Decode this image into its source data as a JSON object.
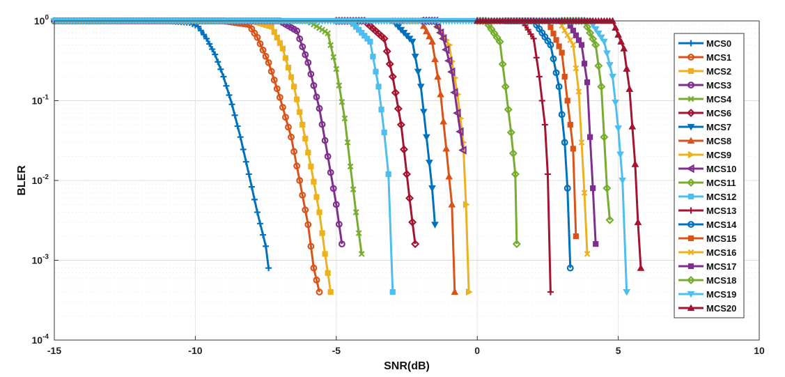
{
  "chart_data": {
    "type": "line",
    "title": "",
    "xlabel": "SNR(dB)",
    "ylabel": "BLER",
    "xlim": [
      -15,
      10
    ],
    "ylim": [
      0.0001,
      1
    ],
    "yscale": "log",
    "grid": true,
    "legend": "right",
    "xticks": [
      -15,
      -10,
      -5,
      0,
      5,
      10
    ],
    "yticks": [
      {
        "value": 1,
        "base": "10",
        "exp": "0"
      },
      {
        "value": 0.1,
        "base": "10",
        "exp": "-1"
      },
      {
        "value": 0.01,
        "base": "10",
        "exp": "-2"
      },
      {
        "value": 0.001,
        "base": "10",
        "exp": "-3"
      },
      {
        "value": 0.0001,
        "base": "10",
        "exp": "-4"
      }
    ],
    "series": [
      {
        "name": "MCS0",
        "color": "#0072BD",
        "marker": "plus",
        "x": [
          -15,
          -11,
          -10.2,
          -9.9,
          -9.6,
          -9.3,
          -9.0,
          -8.7,
          -8.4,
          -8.1,
          -7.8,
          -7.5,
          -7.4
        ],
        "y": [
          1,
          1,
          0.95,
          0.85,
          0.6,
          0.38,
          0.2,
          0.09,
          0.035,
          0.012,
          0.004,
          0.0015,
          0.0008
        ]
      },
      {
        "name": "MCS1",
        "color": "#D95319",
        "marker": "circle",
        "x": [
          -15,
          -9,
          -8.1,
          -7.8,
          -7.4,
          -7.0,
          -6.6,
          -6.3,
          -6.0,
          -5.8,
          -5.6
        ],
        "y": [
          1,
          1,
          0.9,
          0.62,
          0.3,
          0.11,
          0.035,
          0.01,
          0.0028,
          0.0008,
          0.0004
        ]
      },
      {
        "name": "MCS2",
        "color": "#EDB120",
        "marker": "square",
        "x": [
          -15,
          -8,
          -7.3,
          -6.9,
          -6.5,
          -6.2,
          -5.9,
          -5.6,
          -5.4,
          -5.2
        ],
        "y": [
          1,
          1,
          0.85,
          0.45,
          0.15,
          0.05,
          0.015,
          0.004,
          0.0012,
          0.0004
        ]
      },
      {
        "name": "MCS3",
        "color": "#7E2F8E",
        "marker": "circle",
        "x": [
          -15,
          -7,
          -6.4,
          -6.0,
          -5.6,
          -5.3,
          -5.0,
          -4.8
        ],
        "y": [
          1,
          1,
          0.75,
          0.3,
          0.08,
          0.02,
          0.005,
          0.0016
        ]
      },
      {
        "name": "MCS4",
        "color": "#77AC30",
        "marker": "x",
        "x": [
          -15,
          -6,
          -5.3,
          -5.0,
          -4.7,
          -4.5,
          -4.3,
          -4.1
        ],
        "y": [
          1,
          1,
          0.7,
          0.25,
          0.06,
          0.015,
          0.004,
          0.0012
        ]
      },
      {
        "name": "MCS6",
        "color": "#A2142F",
        "marker": "diamond",
        "x": [
          -5,
          -4,
          -3.3,
          -3.0,
          -2.7,
          -2.5,
          -2.3,
          -2.2
        ],
        "y": [
          1,
          1,
          0.6,
          0.2,
          0.05,
          0.012,
          0.003,
          0.0016
        ]
      },
      {
        "name": "MCS7",
        "color": "#0072BD",
        "marker": "triangle-down",
        "x": [
          -4,
          -3,
          -2.3,
          -2.0,
          -1.8,
          -1.6,
          -1.5
        ],
        "y": [
          1,
          1,
          0.55,
          0.15,
          0.035,
          0.008,
          0.0028
        ]
      },
      {
        "name": "MCS8",
        "color": "#D95319",
        "marker": "triangle-up",
        "x": [
          -3,
          -2,
          -1.6,
          -1.3,
          -1.1,
          -0.9,
          -0.8
        ],
        "y": [
          1,
          1,
          0.55,
          0.12,
          0.025,
          0.005,
          0.0004
        ]
      },
      {
        "name": "MCS9",
        "color": "#EDB120",
        "marker": "triangle-right",
        "x": [
          -2.5,
          -1.5,
          -1.0,
          -0.7,
          -0.5,
          -0.4,
          -0.3
        ],
        "y": [
          1,
          1,
          0.5,
          0.12,
          0.03,
          0.005,
          0.0004
        ]
      },
      {
        "name": "MCS10",
        "color": "#7E2F8E",
        "marker": "triangle-left",
        "x": [
          -2,
          -1.5,
          -1.2,
          -0.9,
          -0.7,
          -0.5
        ],
        "y": [
          1,
          1,
          0.6,
          0.23,
          0.07,
          0.024
        ]
      },
      {
        "name": "MCS11",
        "color": "#77AC30",
        "marker": "diamond",
        "x": [
          0,
          0.3,
          0.8,
          1.0,
          1.2,
          1.35,
          1.4
        ],
        "y": [
          1,
          1,
          0.55,
          0.15,
          0.04,
          0.012,
          0.0016
        ]
      },
      {
        "name": "MCS12",
        "color": "#4DBEEE",
        "marker": "square",
        "x": [
          -5,
          -4.5,
          -3.8,
          -3.5,
          -3.3,
          -3.15,
          -3.0
        ],
        "y": [
          1,
          1,
          0.55,
          0.15,
          0.04,
          0.012,
          0.0004
        ]
      },
      {
        "name": "MCS13",
        "color": "#A2142F",
        "marker": "plus",
        "x": [
          0,
          1.6,
          2.0,
          2.2,
          2.4,
          2.5,
          2.6
        ],
        "y": [
          1,
          1,
          0.6,
          0.2,
          0.05,
          0.012,
          0.0004
        ]
      },
      {
        "name": "MCS14",
        "color": "#0072BD",
        "marker": "circle",
        "x": [
          1,
          2,
          2.6,
          2.9,
          3.1,
          3.2,
          3.3
        ],
        "y": [
          1,
          1,
          0.5,
          0.15,
          0.03,
          0.008,
          0.0008
        ]
      },
      {
        "name": "MCS15",
        "color": "#D95319",
        "marker": "square",
        "x": [
          1.5,
          2.5,
          3.0,
          3.2,
          3.4,
          3.5
        ],
        "y": [
          1,
          1,
          0.4,
          0.1,
          0.025,
          0.002
        ]
      },
      {
        "name": "MCS16",
        "color": "#EDB120",
        "marker": "x",
        "x": [
          1.5,
          2.9,
          3.4,
          3.6,
          3.7,
          3.8,
          3.9
        ],
        "y": [
          1,
          1,
          0.5,
          0.13,
          0.03,
          0.007,
          0.0012
        ]
      },
      {
        "name": "MCS17",
        "color": "#7E2F8E",
        "marker": "square",
        "x": [
          2,
          3.2,
          3.7,
          3.9,
          4.0,
          4.1,
          4.2
        ],
        "y": [
          1,
          1,
          0.5,
          0.17,
          0.035,
          0.008,
          0.0016
        ]
      },
      {
        "name": "MCS18",
        "color": "#77AC30",
        "marker": "diamond",
        "x": [
          3,
          3.8,
          4.2,
          4.4,
          4.5,
          4.6,
          4.7
        ],
        "y": [
          1,
          1,
          0.5,
          0.15,
          0.035,
          0.008,
          0.0032
        ]
      },
      {
        "name": "MCS19",
        "color": "#4DBEEE",
        "marker": "triangle-down",
        "x": [
          -15,
          4.0,
          4.5,
          4.8,
          5.0,
          5.15,
          5.3
        ],
        "y": [
          1,
          1,
          0.55,
          0.2,
          0.045,
          0.01,
          0.0004
        ]
      },
      {
        "name": "MCS20",
        "color": "#A2142F",
        "marker": "triangle-up",
        "x": [
          0,
          4.8,
          5.2,
          5.4,
          5.6,
          5.7,
          5.8
        ],
        "y": [
          1,
          1,
          0.45,
          0.14,
          0.016,
          0.003,
          0.0008
        ]
      }
    ]
  }
}
